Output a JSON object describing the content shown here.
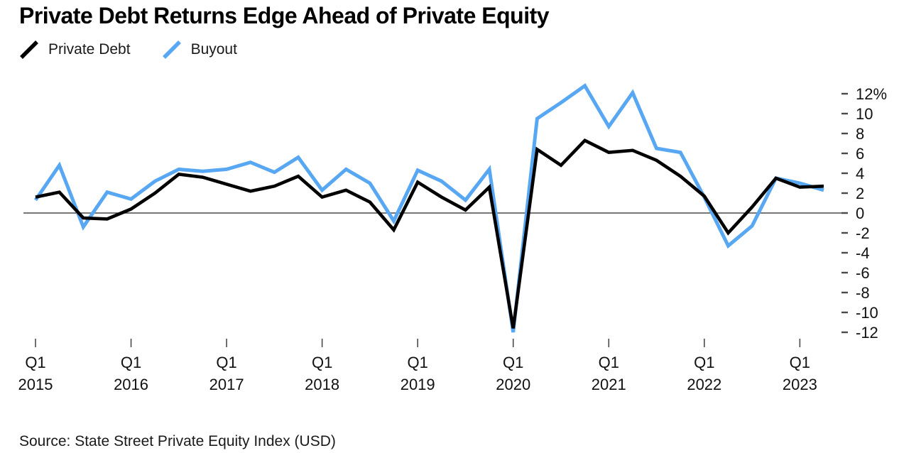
{
  "title": "Private Debt Returns Edge Ahead of Private Equity",
  "legend": {
    "items": [
      {
        "label": "Private Debt",
        "color": "#000000"
      },
      {
        "label": "Buyout",
        "color": "#58A7F3"
      }
    ]
  },
  "source_note": "Source: State Street Private Equity Index (USD)",
  "colors": {
    "private_debt": "#000000",
    "buyout": "#58A7F3",
    "axis": "#4a4a4a",
    "text": "#111111"
  },
  "chart_data": {
    "type": "line",
    "title": "Private Debt Returns Edge Ahead of Private Equity",
    "xlabel": "",
    "ylabel": "",
    "unit": "%",
    "legend_position": "top-left",
    "y_axis_side": "right",
    "grid": "zero-line-only",
    "ylim": [
      -13,
      13.5
    ],
    "x": [
      "Q1 2015",
      "Q2 2015",
      "Q3 2015",
      "Q4 2015",
      "Q1 2016",
      "Q2 2016",
      "Q3 2016",
      "Q4 2016",
      "Q1 2017",
      "Q2 2017",
      "Q3 2017",
      "Q4 2017",
      "Q1 2018",
      "Q2 2018",
      "Q3 2018",
      "Q4 2018",
      "Q1 2019",
      "Q2 2019",
      "Q3 2019",
      "Q4 2019",
      "Q1 2020",
      "Q2 2020",
      "Q3 2020",
      "Q4 2020",
      "Q1 2021",
      "Q2 2021",
      "Q3 2021",
      "Q4 2021",
      "Q1 2022",
      "Q2 2022",
      "Q3 2022",
      "Q4 2022",
      "Q1 2023",
      "Q2 2023"
    ],
    "series": [
      {
        "name": "Private Debt",
        "color": "#000000",
        "values": [
          1.6,
          2.1,
          -0.5,
          -0.6,
          0.4,
          2.0,
          3.9,
          3.6,
          2.9,
          2.2,
          2.7,
          3.7,
          1.6,
          2.3,
          1.1,
          -1.7,
          3.1,
          1.6,
          0.3,
          2.6,
          -11.6,
          6.4,
          4.8,
          7.3,
          6.1,
          6.3,
          5.3,
          3.7,
          1.7,
          -2.0,
          0.6,
          3.5,
          2.6,
          2.7
        ]
      },
      {
        "name": "Buyout",
        "color": "#58A7F3",
        "values": [
          1.3,
          4.8,
          -1.4,
          2.1,
          1.4,
          3.2,
          4.4,
          4.2,
          4.4,
          5.1,
          4.1,
          5.6,
          2.3,
          4.4,
          3.0,
          -0.8,
          4.3,
          3.2,
          1.3,
          4.4,
          -12.0,
          9.5,
          11.1,
          12.8,
          8.7,
          12.1,
          6.5,
          6.1,
          1.6,
          -3.3,
          -1.3,
          3.5,
          3.0,
          2.3
        ]
      }
    ],
    "y_ticks": {
      "labels": [
        "12%",
        "10",
        "8",
        "6",
        "4",
        "2",
        "0",
        "-2",
        "-4",
        "-6",
        "-8",
        "-10",
        "-12"
      ],
      "values": [
        12,
        10,
        8,
        6,
        4,
        2,
        0,
        -2,
        -4,
        -6,
        -8,
        -10,
        -12
      ]
    },
    "x_ticks": {
      "top_label": "Q1",
      "years": [
        "2015",
        "2016",
        "2017",
        "2018",
        "2019",
        "2020",
        "2021",
        "2022",
        "2023"
      ]
    },
    "source": "Source: State Street Private Equity Index (USD)"
  }
}
